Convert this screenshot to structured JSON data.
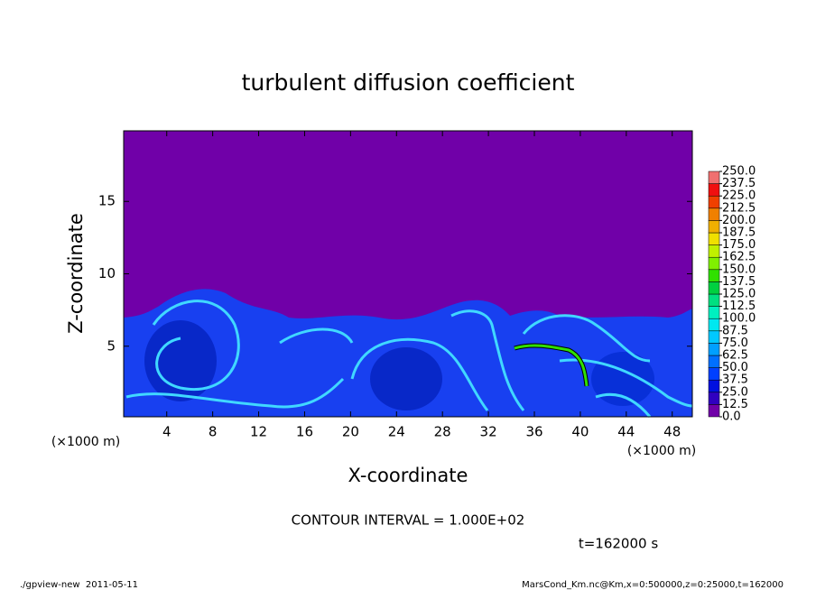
{
  "chart_data": {
    "type": "contour",
    "title": "turbulent diffusion coefficient",
    "xlabel": "X-coordinate",
    "ylabel": "Z-coordinate",
    "xunit": "(×1000 m)",
    "xlim": [
      0.25,
      49.75
    ],
    "xticks": [
      4,
      8,
      12,
      16,
      20,
      24,
      28,
      32,
      36,
      40,
      44,
      48
    ],
    "ylim": [
      0.125,
      19.875
    ],
    "yticks": [
      5,
      10,
      15
    ],
    "clim": [
      0,
      250
    ],
    "colorbar_ticks": [
      {
        "value": 0,
        "label": "0.0"
      },
      {
        "value": 12.5,
        "label": "12.5"
      },
      {
        "value": 25,
        "label": "25.0"
      },
      {
        "value": 37.5,
        "label": "37.5"
      },
      {
        "value": 50,
        "label": "50.0"
      },
      {
        "value": 62.5,
        "label": "62.5"
      },
      {
        "value": 75,
        "label": "75.0"
      },
      {
        "value": 87.5,
        "label": "87.5"
      },
      {
        "value": 100,
        "label": "100.0"
      },
      {
        "value": 112.5,
        "label": "112.5"
      },
      {
        "value": 125,
        "label": "125.0"
      },
      {
        "value": 137.5,
        "label": "137.5"
      },
      {
        "value": 150,
        "label": "150.0"
      },
      {
        "value": 162.5,
        "label": "162.5"
      },
      {
        "value": 175,
        "label": "175.0"
      },
      {
        "value": 187.5,
        "label": "187.5"
      },
      {
        "value": 200,
        "label": "200.0"
      },
      {
        "value": 212.5,
        "label": "212.5"
      },
      {
        "value": 225,
        "label": "225.0"
      },
      {
        "value": 237.5,
        "label": "237.5"
      },
      {
        "value": 250,
        "label": "250.0"
      }
    ],
    "colorbar_colors": [
      "#7000a8",
      "#3000c0",
      "#0010e0",
      "#0040ff",
      "#0070ff",
      "#00a0ff",
      "#00c8ff",
      "#00e8f0",
      "#00f0c0",
      "#00e080",
      "#00d040",
      "#30e000",
      "#80f000",
      "#c0f000",
      "#f0e000",
      "#f0b000",
      "#f08000",
      "#f04000",
      "#f01010",
      "#f07070"
    ],
    "contour_interval": "CONTOUR INTERVAL = 1.000E+02",
    "time_label": "t=162000 s",
    "footer_left": "./gpview-new  2011-05-11",
    "footer_right": "MarsCond_Km.nc@Km,x=0:500000,z=0:25000,t=162000"
  }
}
